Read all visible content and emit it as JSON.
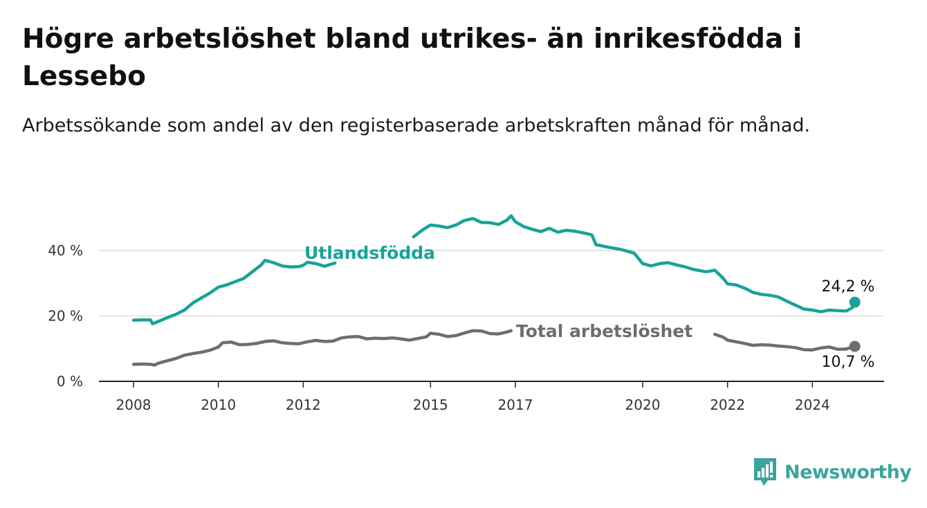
{
  "title": "Högre arbetslöshet bland utrikes- än inrikesfödda i Lessebo",
  "subtitle": "Arbetssökande som andel av den registerbaserade arbetskraften månad för månad.",
  "brand": {
    "name": "Newsworthy",
    "color": "#3aa59b",
    "icon": "bar-chart-logo-icon"
  },
  "chart_data": {
    "type": "line",
    "title": "Högre arbetslöshet bland utrikes- än inrikesfödda i Lessebo",
    "subtitle": "Arbetssökande som andel av den registerbaserade arbetskraften månad för månad.",
    "xlabel": "",
    "ylabel": "",
    "x_ticks": [
      {
        "year": 2008,
        "label": "2008"
      },
      {
        "year": 2010,
        "label": "2010"
      },
      {
        "year": 2012,
        "label": "2012"
      },
      {
        "year": 2015,
        "label": "2015"
      },
      {
        "year": 2017,
        "label": "2017"
      },
      {
        "year": 2020,
        "label": "2020"
      },
      {
        "year": 2022,
        "label": "2022"
      },
      {
        "year": 2024,
        "label": "2024"
      }
    ],
    "y_ticks": [
      {
        "value": 0,
        "label": "0 %"
      },
      {
        "value": 20,
        "label": "20 %"
      },
      {
        "value": 40,
        "label": "40 %"
      }
    ],
    "xlim": [
      2007.4,
      2025.6
    ],
    "ylim": [
      0,
      52
    ],
    "grid": true,
    "legend": "inline labels",
    "series": [
      {
        "name": "Utlandsfödda",
        "color": "#17a398",
        "end_label": "24,2 %",
        "points": [
          [
            2008.0,
            18.7
          ],
          [
            2008.2,
            18.8
          ],
          [
            2008.4,
            18.8
          ],
          [
            2008.45,
            17.6
          ],
          [
            2008.6,
            18.4
          ],
          [
            2008.8,
            19.5
          ],
          [
            2009.0,
            20.5
          ],
          [
            2009.2,
            21.8
          ],
          [
            2009.4,
            24.0
          ],
          [
            2009.6,
            25.5
          ],
          [
            2009.8,
            27.0
          ],
          [
            2010.0,
            28.8
          ],
          [
            2010.2,
            29.5
          ],
          [
            2010.4,
            30.5
          ],
          [
            2010.6,
            31.5
          ],
          [
            2010.8,
            33.5
          ],
          [
            2011.0,
            35.5
          ],
          [
            2011.1,
            37.0
          ],
          [
            2011.3,
            36.3
          ],
          [
            2011.5,
            35.3
          ],
          [
            2011.7,
            35.0
          ],
          [
            2011.9,
            35.1
          ],
          [
            2012.0,
            35.5
          ],
          [
            2012.1,
            36.4
          ],
          [
            2012.3,
            36.0
          ],
          [
            2012.5,
            35.2
          ],
          [
            2012.7,
            36.0
          ],
          [
            2012.75,
            36.2
          ]
        ],
        "points_after_label": [
          [
            2014.6,
            44.2
          ],
          [
            2014.8,
            46.2
          ],
          [
            2015.0,
            47.8
          ],
          [
            2015.2,
            47.5
          ],
          [
            2015.4,
            47.0
          ],
          [
            2015.6,
            47.8
          ],
          [
            2015.8,
            49.2
          ],
          [
            2016.0,
            49.8
          ],
          [
            2016.2,
            48.6
          ],
          [
            2016.4,
            48.5
          ],
          [
            2016.6,
            48.0
          ],
          [
            2016.8,
            49.3
          ],
          [
            2016.9,
            50.6
          ],
          [
            2017.0,
            48.8
          ],
          [
            2017.2,
            47.3
          ],
          [
            2017.4,
            46.5
          ],
          [
            2017.6,
            45.8
          ],
          [
            2017.8,
            46.8
          ],
          [
            2018.0,
            45.6
          ],
          [
            2018.2,
            46.2
          ],
          [
            2018.4,
            45.9
          ],
          [
            2018.6,
            45.4
          ],
          [
            2018.8,
            44.8
          ],
          [
            2018.9,
            41.8
          ],
          [
            2019.2,
            41.0
          ],
          [
            2019.5,
            40.3
          ],
          [
            2019.8,
            39.2
          ],
          [
            2020.0,
            36.0
          ],
          [
            2020.2,
            35.3
          ],
          [
            2020.4,
            36.0
          ],
          [
            2020.6,
            36.3
          ],
          [
            2020.8,
            35.6
          ],
          [
            2021.0,
            35.0
          ],
          [
            2021.2,
            34.2
          ],
          [
            2021.5,
            33.5
          ],
          [
            2021.7,
            34.0
          ],
          [
            2021.9,
            31.5
          ],
          [
            2022.0,
            29.8
          ],
          [
            2022.2,
            29.5
          ],
          [
            2022.4,
            28.5
          ],
          [
            2022.6,
            27.2
          ],
          [
            2022.8,
            26.6
          ],
          [
            2023.0,
            26.3
          ],
          [
            2023.2,
            25.8
          ],
          [
            2023.4,
            24.5
          ],
          [
            2023.6,
            23.3
          ],
          [
            2023.8,
            22.1
          ],
          [
            2024.0,
            21.8
          ],
          [
            2024.2,
            21.3
          ],
          [
            2024.4,
            21.8
          ],
          [
            2024.6,
            21.6
          ],
          [
            2024.8,
            21.5
          ],
          [
            2024.95,
            22.6
          ],
          [
            2025.0,
            24.2
          ]
        ]
      },
      {
        "name": "Total arbetslöshet",
        "color": "#6e6b73",
        "end_label": "10,7 %",
        "points": [
          [
            2008.0,
            5.2
          ],
          [
            2008.2,
            5.3
          ],
          [
            2008.4,
            5.2
          ],
          [
            2008.5,
            5.0
          ],
          [
            2008.6,
            5.6
          ],
          [
            2008.8,
            6.3
          ],
          [
            2009.0,
            7.0
          ],
          [
            2009.2,
            8.0
          ],
          [
            2009.4,
            8.5
          ],
          [
            2009.6,
            8.9
          ],
          [
            2009.8,
            9.5
          ],
          [
            2010.0,
            10.5
          ],
          [
            2010.1,
            11.8
          ],
          [
            2010.3,
            12.0
          ],
          [
            2010.5,
            11.2
          ],
          [
            2010.7,
            11.3
          ],
          [
            2010.9,
            11.6
          ],
          [
            2011.1,
            12.2
          ],
          [
            2011.3,
            12.4
          ],
          [
            2011.5,
            11.8
          ],
          [
            2011.7,
            11.6
          ],
          [
            2011.9,
            11.5
          ],
          [
            2012.1,
            12.1
          ],
          [
            2012.3,
            12.5
          ],
          [
            2012.5,
            12.2
          ],
          [
            2012.7,
            12.3
          ],
          [
            2012.9,
            13.3
          ],
          [
            2013.1,
            13.6
          ],
          [
            2013.3,
            13.7
          ],
          [
            2013.5,
            13.0
          ],
          [
            2013.7,
            13.2
          ],
          [
            2013.9,
            13.1
          ],
          [
            2014.1,
            13.3
          ],
          [
            2014.3,
            13.0
          ],
          [
            2014.5,
            12.6
          ],
          [
            2014.7,
            13.1
          ],
          [
            2014.9,
            13.6
          ],
          [
            2015.0,
            14.7
          ],
          [
            2015.2,
            14.4
          ],
          [
            2015.4,
            13.7
          ],
          [
            2015.6,
            14.0
          ],
          [
            2015.8,
            14.8
          ],
          [
            2016.0,
            15.5
          ],
          [
            2016.2,
            15.4
          ],
          [
            2016.4,
            14.6
          ],
          [
            2016.6,
            14.5
          ],
          [
            2016.8,
            15.1
          ],
          [
            2016.9,
            15.5
          ]
        ],
        "points_after_label": [
          [
            2021.7,
            14.4
          ],
          [
            2021.9,
            13.5
          ],
          [
            2022.0,
            12.6
          ],
          [
            2022.2,
            12.1
          ],
          [
            2022.4,
            11.6
          ],
          [
            2022.6,
            11.0
          ],
          [
            2022.8,
            11.2
          ],
          [
            2023.0,
            11.1
          ],
          [
            2023.2,
            10.8
          ],
          [
            2023.4,
            10.6
          ],
          [
            2023.6,
            10.3
          ],
          [
            2023.8,
            9.7
          ],
          [
            2024.0,
            9.6
          ],
          [
            2024.2,
            10.2
          ],
          [
            2024.4,
            10.5
          ],
          [
            2024.6,
            9.8
          ],
          [
            2024.8,
            9.9
          ],
          [
            2025.0,
            10.7
          ]
        ]
      }
    ]
  }
}
